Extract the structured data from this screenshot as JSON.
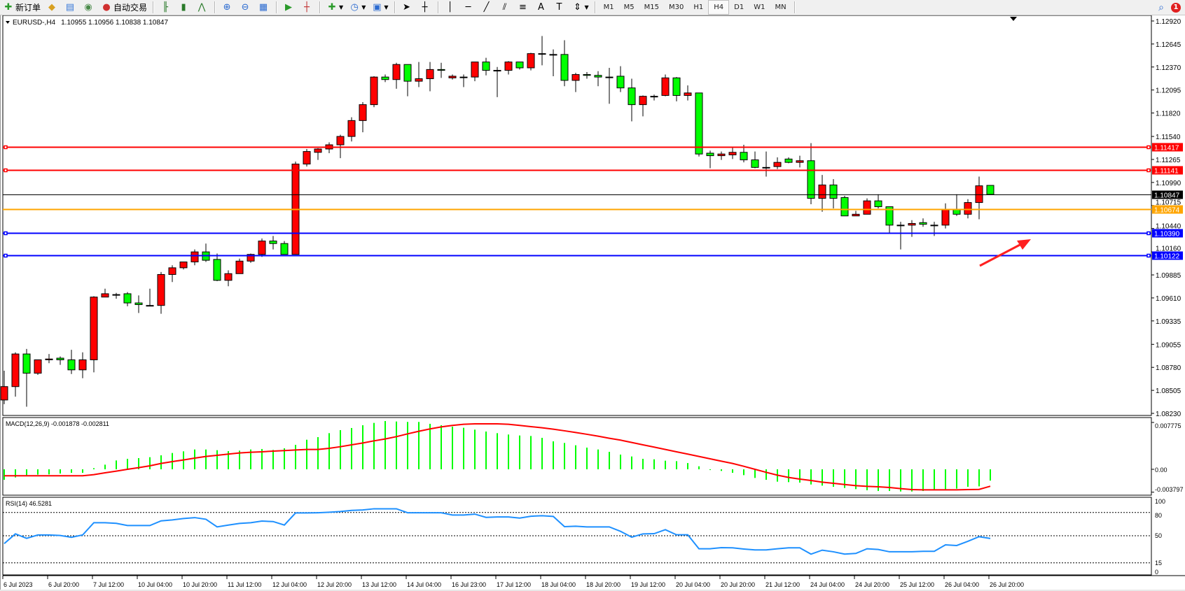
{
  "toolbar": {
    "new_order": "新订单",
    "auto_trading": "自动交易",
    "timeframes": [
      "M1",
      "M5",
      "M15",
      "M30",
      "H1",
      "H4",
      "D1",
      "W1",
      "MN"
    ],
    "active_timeframe": "H4",
    "notification_count": "1",
    "tools": [
      "metaeditor-icon",
      "signals-icon",
      "market-icon",
      "bar-chart-icon",
      "candlestick-icon",
      "line-chart-icon",
      "zoom-in-icon",
      "zoom-out-icon",
      "tile-windows-icon",
      "auto-scroll-icon",
      "chart-shift-icon",
      "indicators-icon",
      "periods-icon",
      "templates-icon",
      "cursor-icon",
      "crosshair-icon",
      "vertical-line-icon",
      "horizontal-line-icon",
      "trendline-icon",
      "equidistant-channel-icon",
      "fibonacci-icon",
      "text-icon",
      "text-label-icon",
      "arrows-icon"
    ]
  },
  "chart": {
    "symbol_label": "EURUSD-,H4",
    "ohlc": "1.10955 1.10956 1.10838 1.10847",
    "price_ticks": [
      "1.12920",
      "1.12645",
      "1.12370",
      "1.12095",
      "1.11820",
      "1.11540",
      "1.11265",
      "1.10990",
      "1.10715",
      "1.10440",
      "1.10160",
      "1.09885",
      "1.09610",
      "1.09335",
      "1.09055",
      "1.08780",
      "1.08505",
      "1.08230"
    ],
    "levels": [
      {
        "price": "1.11417",
        "color": "#ff0000",
        "handles": true
      },
      {
        "price": "1.11141",
        "color": "#ff0000",
        "handles": true
      },
      {
        "price": "1.10847",
        "color": "#000000",
        "handles": false
      },
      {
        "price": "1.10674",
        "color": "#ffa500",
        "handles": false
      },
      {
        "price": "1.10390",
        "color": "#0000ff",
        "handles": true
      },
      {
        "price": "1.10122",
        "color": "#0000ff",
        "handles": true
      }
    ],
    "time_labels": [
      "6 Jul 2023",
      "6 Jul 20:00",
      "7 Jul 12:00",
      "10 Jul 04:00",
      "10 Jul 20:00",
      "11 Jul 12:00",
      "12 Jul 04:00",
      "12 Jul 20:00",
      "13 Jul 12:00",
      "14 Jul 04:00",
      "16 Jul 23:00",
      "17 Jul 12:00",
      "18 Jul 04:00",
      "18 Jul 20:00",
      "19 Jul 12:00",
      "20 Jul 04:00",
      "20 Jul 20:00",
      "21 Jul 12:00",
      "24 Jul 04:00",
      "24 Jul 20:00",
      "25 Jul 12:00",
      "26 Jul 04:00",
      "26 Jul 20:00"
    ],
    "up_color": "#ff0000",
    "down_color": "#00ff00",
    "annotation_arrow_color": "#ff2020"
  },
  "macd": {
    "label": "MACD(12,26,9) -0.001878 -0.002811",
    "ticks": [
      "0.007775",
      "0.00",
      "-0.003797"
    ],
    "histogram_color": "#00ff00",
    "signal_color": "#ff0000"
  },
  "rsi": {
    "label": "RSI(14) 46.5281",
    "ticks": [
      "100",
      "80",
      "50",
      "15",
      "0"
    ],
    "color": "#1e90ff"
  },
  "chart_data": [
    {
      "type": "candlestick",
      "title": "EURUSD-,H4",
      "timeframe": "H4",
      "ylim": [
        1.0823,
        1.1292
      ],
      "ohlc": [
        [
          1.0839,
          1.0874,
          1.0834,
          1.0855
        ],
        [
          1.0855,
          1.0896,
          1.0843,
          1.0894
        ],
        [
          1.0894,
          1.09,
          1.0831,
          1.0871
        ],
        [
          1.0871,
          1.0887,
          1.0869,
          1.0887
        ],
        [
          1.0887,
          1.0894,
          1.0883,
          1.0888
        ],
        [
          1.0889,
          1.0891,
          1.0881,
          1.0887
        ],
        [
          1.0887,
          1.0899,
          1.087,
          1.0875
        ],
        [
          1.0875,
          1.0896,
          1.0865,
          1.0887
        ],
        [
          1.0887,
          1.0963,
          1.0872,
          1.0962
        ],
        [
          1.0962,
          1.0972,
          1.0962,
          1.0966
        ],
        [
          1.0965,
          1.0967,
          1.096,
          1.0965
        ],
        [
          1.0966,
          1.0968,
          1.0951,
          1.0955
        ],
        [
          1.0955,
          1.0964,
          1.0943,
          1.0953
        ],
        [
          1.0952,
          1.0972,
          1.0951,
          1.0952
        ],
        [
          1.0952,
          1.0992,
          1.0942,
          1.0989
        ],
        [
          1.0989,
          1.1,
          1.098,
          1.0997
        ],
        [
          1.0997,
          1.1004,
          1.0995,
          1.1004
        ],
        [
          1.1004,
          1.1019,
          1.1,
          1.1016
        ],
        [
          1.1016,
          1.1026,
          1.1004,
          1.1006
        ],
        [
          1.1007,
          1.1014,
          1.0981,
          1.0982
        ],
        [
          1.0982,
          1.0994,
          1.0975,
          1.099
        ],
        [
          1.099,
          1.1008,
          1.099,
          1.1005
        ],
        [
          1.1005,
          1.1014,
          1.1003,
          1.1013
        ],
        [
          1.1013,
          1.1032,
          1.101,
          1.1029
        ],
        [
          1.1029,
          1.1035,
          1.1019,
          1.1026
        ],
        [
          1.1026,
          1.1029,
          1.1013,
          1.1013
        ],
        [
          1.1013,
          1.1124,
          1.1013,
          1.1121
        ],
        [
          1.1121,
          1.1139,
          1.1118,
          1.1136
        ],
        [
          1.1135,
          1.114,
          1.1126,
          1.1139
        ],
        [
          1.1139,
          1.1147,
          1.1134,
          1.1144
        ],
        [
          1.1144,
          1.1156,
          1.1128,
          1.1154
        ],
        [
          1.1154,
          1.1177,
          1.1148,
          1.1173
        ],
        [
          1.1173,
          1.1195,
          1.1159,
          1.1192
        ],
        [
          1.1192,
          1.1226,
          1.1189,
          1.1225
        ],
        [
          1.1225,
          1.1228,
          1.1219,
          1.1222
        ],
        [
          1.1222,
          1.1242,
          1.1211,
          1.124
        ],
        [
          1.124,
          1.124,
          1.1202,
          1.122
        ],
        [
          1.122,
          1.1243,
          1.1213,
          1.1223
        ],
        [
          1.1223,
          1.1243,
          1.1208,
          1.1234
        ],
        [
          1.1234,
          1.1242,
          1.1224,
          1.1233
        ],
        [
          1.1224,
          1.1228,
          1.1222,
          1.1226
        ],
        [
          1.1225,
          1.1228,
          1.1213,
          1.1225
        ],
        [
          1.1225,
          1.1243,
          1.122,
          1.1243
        ],
        [
          1.1243,
          1.1248,
          1.1227,
          1.1233
        ],
        [
          1.1233,
          1.1237,
          1.1201,
          1.1233
        ],
        [
          1.1233,
          1.1244,
          1.1228,
          1.1243
        ],
        [
          1.1243,
          1.1243,
          1.1234,
          1.1236
        ],
        [
          1.1236,
          1.1254,
          1.1233,
          1.1253
        ],
        [
          1.1253,
          1.1274,
          1.1239,
          1.1253
        ],
        [
          1.1252,
          1.1258,
          1.1226,
          1.1252
        ],
        [
          1.1252,
          1.1269,
          1.1214,
          1.1221
        ],
        [
          1.1221,
          1.123,
          1.1207,
          1.1228
        ],
        [
          1.1228,
          1.1231,
          1.1223,
          1.1227
        ],
        [
          1.1227,
          1.1232,
          1.1214,
          1.1225
        ],
        [
          1.1225,
          1.1236,
          1.1193,
          1.1225
        ],
        [
          1.1226,
          1.1238,
          1.1207,
          1.1212
        ],
        [
          1.1212,
          1.1223,
          1.1172,
          1.1192
        ],
        [
          1.1192,
          1.1203,
          1.1178,
          1.1202
        ],
        [
          1.1202,
          1.1204,
          1.1197,
          1.1202
        ],
        [
          1.1203,
          1.1228,
          1.1202,
          1.1224
        ],
        [
          1.1224,
          1.1225,
          1.1196,
          1.1203
        ],
        [
          1.1203,
          1.1215,
          1.1197,
          1.1206
        ],
        [
          1.1206,
          1.1206,
          1.113,
          1.1133
        ],
        [
          1.1134,
          1.1137,
          1.1116,
          1.1131
        ],
        [
          1.1131,
          1.1136,
          1.1126,
          1.1133
        ],
        [
          1.1132,
          1.1141,
          1.1127,
          1.1135
        ],
        [
          1.1135,
          1.1144,
          1.1123,
          1.1126
        ],
        [
          1.1126,
          1.1136,
          1.1116,
          1.1117
        ],
        [
          1.1117,
          1.1136,
          1.1106,
          1.1117
        ],
        [
          1.1118,
          1.1129,
          1.1115,
          1.1123
        ],
        [
          1.1127,
          1.1129,
          1.1122,
          1.1123
        ],
        [
          1.1123,
          1.1131,
          1.1117,
          1.1125
        ],
        [
          1.1125,
          1.1146,
          1.1073,
          1.108
        ],
        [
          1.108,
          1.1108,
          1.1064,
          1.1096
        ],
        [
          1.1096,
          1.1103,
          1.1068,
          1.108
        ],
        [
          1.1081,
          1.1083,
          1.1059,
          1.1059
        ],
        [
          1.1059,
          1.1065,
          1.1059,
          1.1061
        ],
        [
          1.1061,
          1.108,
          1.1061,
          1.1077
        ],
        [
          1.1077,
          1.1085,
          1.1068,
          1.107
        ],
        [
          1.107,
          1.107,
          1.1038,
          1.1048
        ],
        [
          1.1048,
          1.1052,
          1.1019,
          1.1048
        ],
        [
          1.1048,
          1.1054,
          1.1034,
          1.105
        ],
        [
          1.1051,
          1.1056,
          1.1046,
          1.1049
        ],
        [
          1.1048,
          1.1052,
          1.1035,
          1.1048
        ],
        [
          1.1048,
          1.1074,
          1.1044,
          1.1067
        ],
        [
          1.1067,
          1.1085,
          1.1059,
          1.1061
        ],
        [
          1.1061,
          1.1079,
          1.1056,
          1.1075
        ],
        [
          1.1075,
          1.1106,
          1.1055,
          1.1095
        ],
        [
          1.10955,
          1.10956,
          1.10838,
          1.10847
        ]
      ]
    },
    {
      "type": "bar+line",
      "title": "MACD(12,26,9)",
      "ylim": [
        -0.003797,
        0.007775
      ],
      "histogram": [
        -0.00174,
        -0.00135,
        -0.00097,
        -0.00089,
        -0.00085,
        -0.0007,
        -0.00058,
        -0.00058,
        0.00019,
        0.00077,
        0.00147,
        0.00174,
        0.00186,
        0.00201,
        0.00232,
        0.00271,
        0.00298,
        0.00329,
        0.00329,
        0.00317,
        0.00302,
        0.0031,
        0.00329,
        0.00337,
        0.00321,
        0.00348,
        0.00406,
        0.00491,
        0.00534,
        0.006,
        0.0065,
        0.00685,
        0.00731,
        0.0077,
        0.00801,
        0.00793,
        0.00786,
        0.00786,
        0.00755,
        0.00731,
        0.00708,
        0.00689,
        0.00658,
        0.00627,
        0.006,
        0.00577,
        0.00561,
        0.00553,
        0.00522,
        0.00464,
        0.00437,
        0.00399,
        0.0036,
        0.00329,
        0.0029,
        0.00244,
        0.00213,
        0.00174,
        0.00166,
        0.00143,
        0.00135,
        0.00104,
        0.0005,
        -0.00012,
        -0.00027,
        -0.00058,
        -0.00097,
        -0.00143,
        -0.00174,
        -0.00205,
        -0.00213,
        -0.00221,
        -0.00252,
        -0.00271,
        -0.0029,
        -0.0031,
        -0.00329,
        -0.00348,
        -0.0036,
        -0.0036,
        -0.00368,
        -0.00368,
        -0.0036,
        -0.00348,
        -0.00329,
        -0.00321,
        -0.0029,
        -0.00283,
        -0.001878
      ],
      "signal": [
        -0.00108,
        -0.00108,
        -0.00108,
        -0.00108,
        -0.00108,
        -0.00108,
        -0.00108,
        -0.00108,
        -0.00089,
        -0.00058,
        -0.00031,
        0,
        0.00027,
        0.00058,
        0.00097,
        0.00128,
        0.00155,
        0.00186,
        0.00213,
        0.00232,
        0.00252,
        0.00271,
        0.00283,
        0.0029,
        0.00302,
        0.0031,
        0.00321,
        0.00329,
        0.00329,
        0.00348,
        0.00375,
        0.00406,
        0.00437,
        0.00472,
        0.00503,
        0.00542,
        0.00588,
        0.00631,
        0.0067,
        0.00704,
        0.00728,
        0.00747,
        0.00755,
        0.00755,
        0.00755,
        0.00747,
        0.00728,
        0.00708,
        0.00689,
        0.00666,
        0.00639,
        0.00611,
        0.00581,
        0.0055,
        0.00515,
        0.00484,
        0.00445,
        0.00406,
        0.00368,
        0.00329,
        0.0029,
        0.00252,
        0.00213,
        0.00174,
        0.00135,
        0.00097,
        0.0005,
        0,
        -0.0005,
        -0.00097,
        -0.00135,
        -0.00163,
        -0.00186,
        -0.00213,
        -0.00232,
        -0.00252,
        -0.00271,
        -0.00283,
        -0.0029,
        -0.00302,
        -0.00321,
        -0.00337,
        -0.00341,
        -0.00341,
        -0.00341,
        -0.00341,
        -0.00337,
        -0.00333,
        -0.002811
      ]
    },
    {
      "type": "line",
      "title": "RSI(14)",
      "ylim": [
        0,
        100
      ],
      "levels": [
        80,
        50,
        15
      ],
      "values": [
        39.8,
        52.4,
        46.7,
        51,
        51,
        50.3,
        48,
        51,
        66.8,
        66.8,
        66,
        63.2,
        63.2,
        63.2,
        69.2,
        70.4,
        72.2,
        73.4,
        71.3,
        61.4,
        63.8,
        65.9,
        66.8,
        68.9,
        68.3,
        63.8,
        79.4,
        79.4,
        79.7,
        80.3,
        81.2,
        82.7,
        83.3,
        84.8,
        84.8,
        84.8,
        79.7,
        79.7,
        79.7,
        79.7,
        76.7,
        76.7,
        77.9,
        73.7,
        74.3,
        74.3,
        72.8,
        75.2,
        75.8,
        74.9,
        61.7,
        62.3,
        61.4,
        61.4,
        61.4,
        55.7,
        48.2,
        52.4,
        52.7,
        57.8,
        51.2,
        51.2,
        33.2,
        33.2,
        34.7,
        34.4,
        32.9,
        31.7,
        31.7,
        33.2,
        34.4,
        34.4,
        26.3,
        31.4,
        29.3,
        26.3,
        27.2,
        33.2,
        32.3,
        29.3,
        29.3,
        29.3,
        29.9,
        29.9,
        38.3,
        37.4,
        42.8,
        48.8,
        46.5281
      ]
    }
  ]
}
